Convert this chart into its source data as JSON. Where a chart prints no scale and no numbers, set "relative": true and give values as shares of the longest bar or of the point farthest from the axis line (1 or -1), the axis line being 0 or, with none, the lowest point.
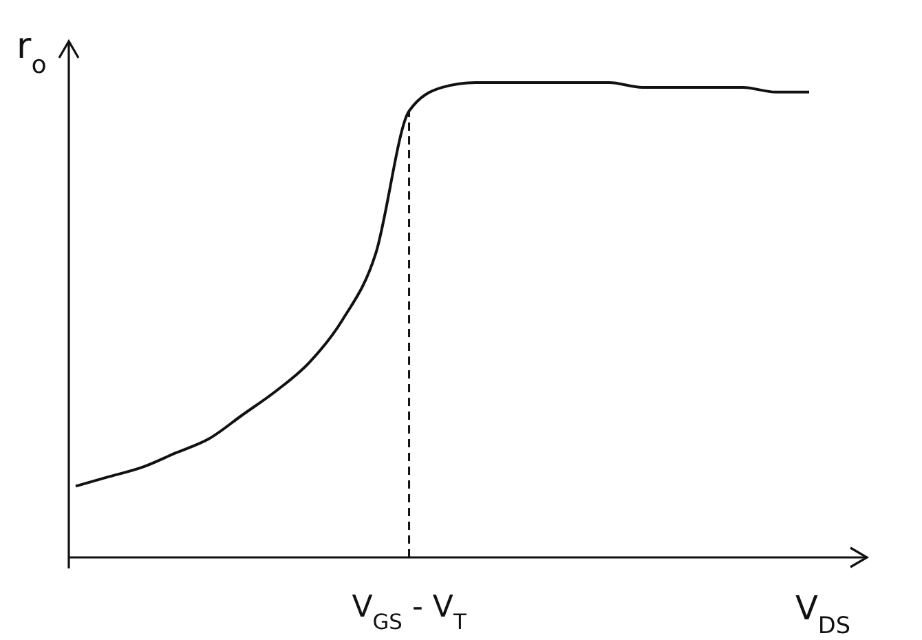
{
  "chart_data": {
    "type": "line",
    "relative": true,
    "xlabel": "V$_{DS}$",
    "ylabel": "r$_{o}$",
    "categories": [
      null,
      null,
      null,
      null,
      null,
      null,
      null,
      null,
      null,
      null,
      null,
      null,
      null,
      null,
      null,
      null,
      null,
      null,
      null,
      null,
      null,
      null,
      null
    ],
    "series": [
      {
        "color": "#111111",
        "values": [
          0.15,
          0.17,
          0.19,
          0.22,
          0.25,
          0.3,
          0.35,
          0.41,
          0.5,
          0.64,
          0.94,
          0.99,
          1.0,
          1.0,
          1.0,
          1.0,
          1.0,
          0.99,
          0.99,
          0.99,
          0.99,
          0.98,
          0.98
        ]
      }
    ],
    "annotations": [
      "V$_{GS}$ - V$_{T}$"
    ],
    "marker": "none",
    "line_style": "solid"
  }
}
